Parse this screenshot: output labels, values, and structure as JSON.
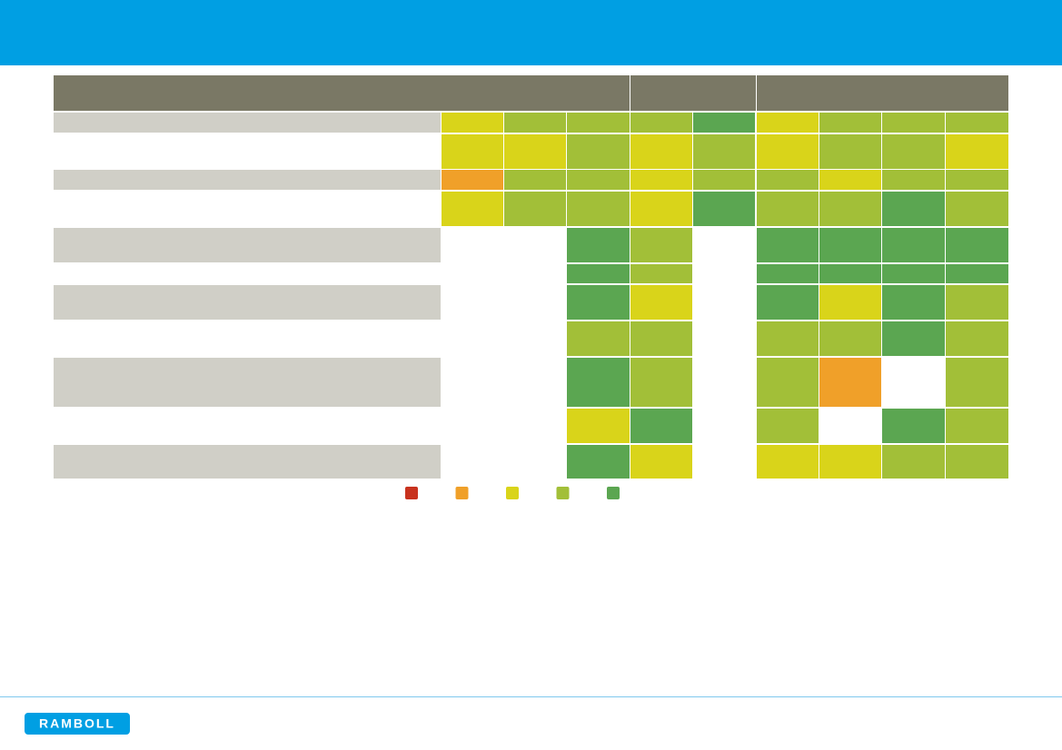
{
  "logo": {
    "text": "RAMBOLL"
  },
  "table": {
    "rows": [
      [
        "#d9d41a",
        "#a2bf38",
        "#a2bf38",
        "#a2bf38",
        "#5ba651",
        "#d9d41a",
        "#a2bf38",
        "#a2bf38",
        "#a2bf38"
      ],
      [
        "#d9d41a",
        "#d9d41a",
        "#a2bf38",
        "#d9d41a",
        "#a2bf38",
        "#d9d41a",
        "#a2bf38",
        "#a2bf38",
        "#d9d41a"
      ],
      [
        "#f0a029",
        "#a2bf38",
        "#a2bf38",
        "#d9d41a",
        "#a2bf38",
        "#a2bf38",
        "#d9d41a",
        "#a2bf38",
        "#a2bf38"
      ],
      [
        "#d9d41a",
        "#a2bf38",
        "#a2bf38",
        "#d9d41a",
        "#5ba651",
        "#a2bf38",
        "#a2bf38",
        "#5ba651",
        "#a2bf38"
      ],
      [
        null,
        null,
        "#5ba651",
        "#a2bf38",
        null,
        "#5ba651",
        "#5ba651",
        "#5ba651",
        "#5ba651"
      ],
      [
        null,
        null,
        "#5ba651",
        "#a2bf38",
        null,
        "#5ba651",
        "#5ba651",
        "#5ba651",
        "#5ba651"
      ],
      [
        null,
        null,
        "#5ba651",
        "#d9d41a",
        null,
        "#5ba651",
        "#d9d41a",
        "#5ba651",
        "#a2bf38"
      ],
      [
        null,
        null,
        "#a2bf38",
        "#a2bf38",
        null,
        "#a2bf38",
        "#a2bf38",
        "#5ba651",
        "#a2bf38"
      ],
      [
        null,
        null,
        "#5ba651",
        "#a2bf38",
        null,
        "#a2bf38",
        "#f0a029",
        null,
        "#a2bf38"
      ],
      [
        null,
        null,
        "#d9d41a",
        "#5ba651",
        null,
        "#a2bf38",
        null,
        "#5ba651",
        "#a2bf38"
      ],
      [
        null,
        null,
        "#5ba651",
        "#d9d41a",
        null,
        "#d9d41a",
        "#d9d41a",
        "#a2bf38",
        "#a2bf38"
      ]
    ]
  },
  "legend": {
    "colors": [
      "#c8321e",
      "#f0a029",
      "#d9d41a",
      "#a2bf38",
      "#5ba651"
    ]
  }
}
